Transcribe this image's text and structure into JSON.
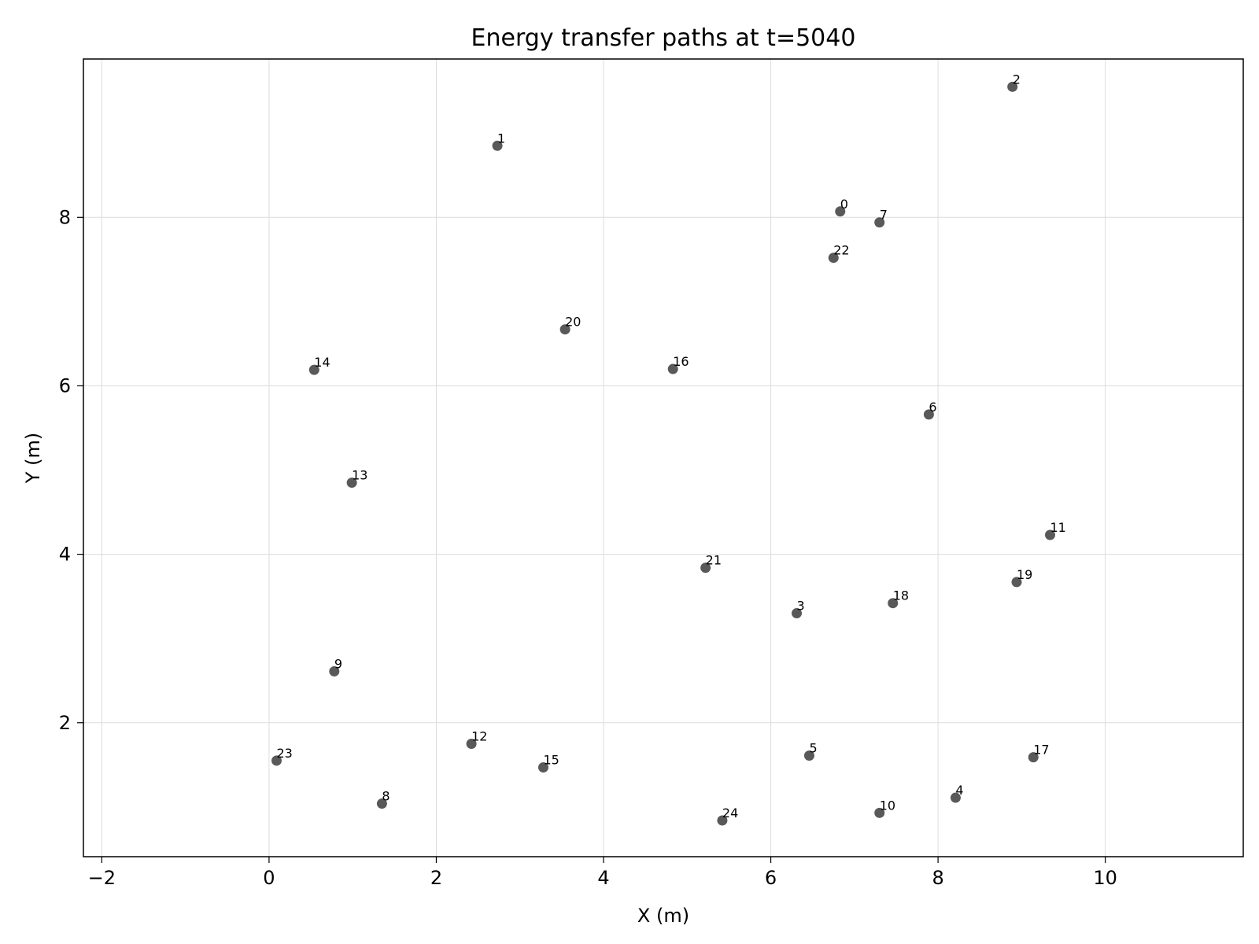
{
  "chart_data": {
    "type": "scatter",
    "title": "Energy transfer paths at t=5040",
    "xlabel": "X (m)",
    "ylabel": "Y (m)",
    "xlim": [
      -2.22,
      11.65
    ],
    "ylim": [
      0.41,
      9.88
    ],
    "xticks": [
      -2,
      0,
      2,
      4,
      6,
      8,
      10
    ],
    "yticks": [
      2,
      4,
      6,
      8
    ],
    "xtick_labels": [
      "−2",
      "0",
      "2",
      "4",
      "6",
      "8",
      "10"
    ],
    "ytick_labels": [
      "2",
      "4",
      "6",
      "8"
    ],
    "grid": true,
    "marker_color": "#595959",
    "points": [
      {
        "label": "0",
        "x": 6.83,
        "y": 8.07
      },
      {
        "label": "1",
        "x": 2.73,
        "y": 8.85
      },
      {
        "label": "2",
        "x": 8.89,
        "y": 9.55
      },
      {
        "label": "3",
        "x": 6.31,
        "y": 3.3
      },
      {
        "label": "4",
        "x": 8.21,
        "y": 1.11
      },
      {
        "label": "5",
        "x": 6.46,
        "y": 1.61
      },
      {
        "label": "6",
        "x": 7.89,
        "y": 5.66
      },
      {
        "label": "7",
        "x": 7.3,
        "y": 7.94
      },
      {
        "label": "8",
        "x": 1.35,
        "y": 1.04
      },
      {
        "label": "9",
        "x": 0.78,
        "y": 2.61
      },
      {
        "label": "10",
        "x": 7.3,
        "y": 0.93
      },
      {
        "label": "11",
        "x": 9.34,
        "y": 4.23
      },
      {
        "label": "12",
        "x": 2.42,
        "y": 1.75
      },
      {
        "label": "13",
        "x": 0.99,
        "y": 4.85
      },
      {
        "label": "14",
        "x": 0.54,
        "y": 6.19
      },
      {
        "label": "15",
        "x": 3.28,
        "y": 1.47
      },
      {
        "label": "16",
        "x": 4.83,
        "y": 6.2
      },
      {
        "label": "17",
        "x": 9.14,
        "y": 1.59
      },
      {
        "label": "18",
        "x": 7.46,
        "y": 3.42
      },
      {
        "label": "19",
        "x": 8.94,
        "y": 3.67
      },
      {
        "label": "20",
        "x": 3.54,
        "y": 6.67
      },
      {
        "label": "21",
        "x": 5.22,
        "y": 3.84
      },
      {
        "label": "22",
        "x": 6.75,
        "y": 7.52
      },
      {
        "label": "23",
        "x": 0.09,
        "y": 1.55
      },
      {
        "label": "24",
        "x": 5.42,
        "y": 0.84
      }
    ]
  }
}
